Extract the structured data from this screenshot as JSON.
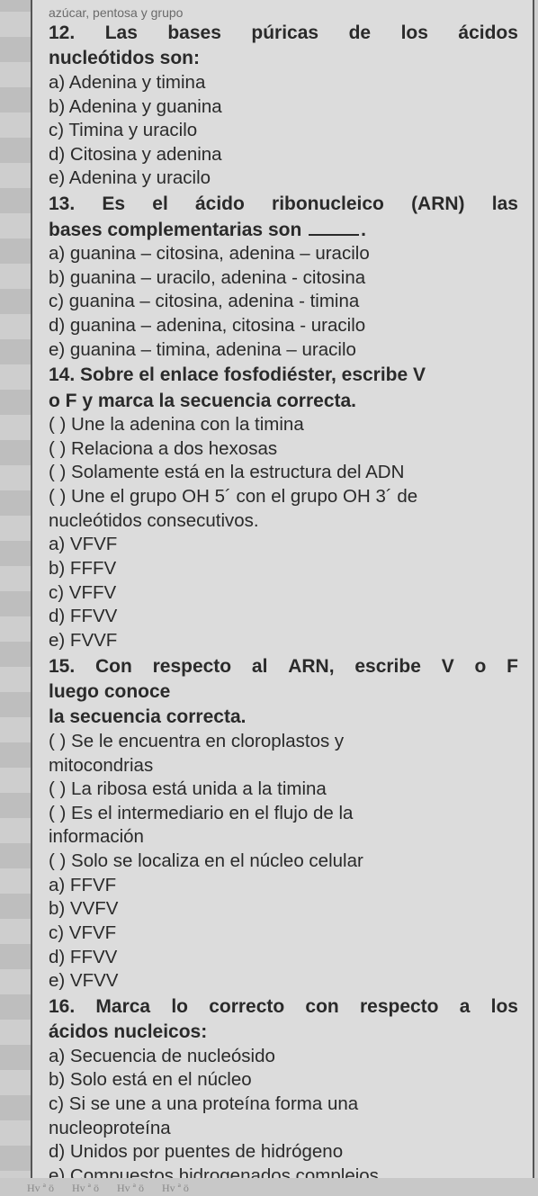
{
  "cutoff_text": "azúcar, pentosa y grupo",
  "q12": {
    "line1": {
      "w1": "12.",
      "w2": "Las",
      "w3": "bases",
      "w4": "púricas",
      "w5": "de",
      "w6": "los",
      "w7": "ácidos"
    },
    "line2": "nucleótidos son:",
    "a": "a) Adenina y timina",
    "b": "b) Adenina y guanina",
    "c": "c) Timina y uracilo",
    "d": "d) Citosina y adenina",
    "e": "e) Adenina y uracilo"
  },
  "q13": {
    "line1": {
      "w1": "13.",
      "w2": "Es",
      "w3": "el",
      "w4": "ácido",
      "w5": "ribonucleico",
      "w6": "(ARN)",
      "w7": "las"
    },
    "line2a": "bases complementarias son ",
    "line2b": ".",
    "a": "a) guanina – citosina, adenina – uracilo",
    "b": "b) guanina – uracilo, adenina - citosina",
    "c": "c) guanina – citosina, adenina - timina",
    "d": "d) guanina – adenina, citosina - uracilo",
    "e": "e) guanina – timina, adenina – uracilo"
  },
  "q14": {
    "line1": "14. Sobre el enlace fosfodiéster, escribe V",
    "line2": "o F y marca la secuencia correcta.",
    "s1": "( ) Une la adenina con la timina",
    "s2": "( ) Relaciona a dos hexosas",
    "s3": "( ) Solamente está en la estructura del ADN",
    "s4a": "( ) Une el grupo OH 5´ con el grupo OH 3´ de",
    "s4b": "nucleótidos consecutivos.",
    "a": "a) VFVF",
    "b": "b) FFFV",
    "c": "c) VFFV",
    "d": "d) FFVV",
    "e": "e) FVVF"
  },
  "q15": {
    "line1": {
      "w1": "15.",
      "w2": "Con",
      "w3": "respecto",
      "w4": "al",
      "w5": "ARN,",
      "w6": "escribe",
      "w7": "V",
      "w8": "o",
      "w9": "F"
    },
    "line2": "luego conoce",
    "line3": "la secuencia correcta.",
    "s1a": "( ) Se le encuentra en cloroplastos y",
    "s1b": "mitocondrias",
    "s2": "( ) La ribosa está unida a la timina",
    "s3a": "( ) Es el intermediario en el flujo de la",
    "s3b": "información",
    "s4": "( ) Solo se localiza en el núcleo celular",
    "a": "a) FFVF",
    "b": "b) VVFV",
    "c": "c) VFVF",
    "d": "d) FFVV",
    "e": "e) VFVV"
  },
  "q16": {
    "line1": {
      "w1": "16.",
      "w2": "Marca",
      "w3": "lo",
      "w4": "correcto",
      "w5": "con",
      "w6": "respecto",
      "w7": "a",
      "w8": "los"
    },
    "line2": "ácidos nucleicos:",
    "a": "a) Secuencia de nucleósido",
    "b": "b) Solo está en el núcleo",
    "c1": "c) Si se une a una proteína forma una",
    "c2": "nucleoproteína",
    "d": "d) Unidos por puentes de hidrógeno",
    "e": "e) Compuestos hidrogenados complejos"
  },
  "deco": {
    "t1": "Hv ª ö",
    "t2": "Hv ª ö",
    "t3": "Hv ª ö",
    "t4": "Hv ª ö"
  }
}
